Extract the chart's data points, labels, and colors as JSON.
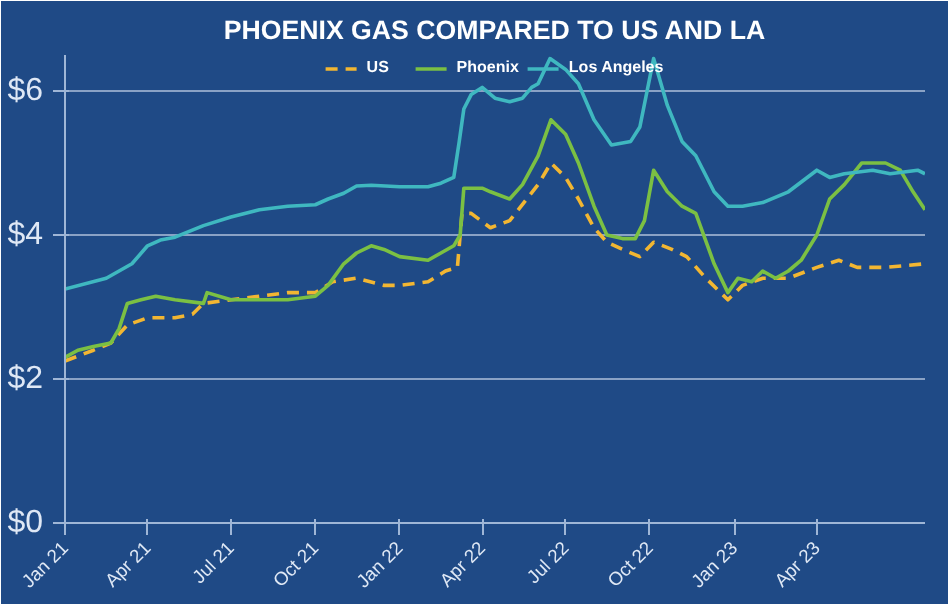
{
  "chart_data": {
    "type": "line",
    "title": "PHOENIX GAS COMPARED TO US AND LA",
    "legend": "top",
    "grid": "y",
    "xlim": [
      "2021-01-01",
      "2023-07-28"
    ],
    "ylim": [
      0,
      6.5
    ],
    "yticks": [
      {
        "value": 0,
        "label": "$0"
      },
      {
        "value": 2,
        "label": "$2"
      },
      {
        "value": 4,
        "label": "$4"
      },
      {
        "value": 6,
        "label": "$6"
      }
    ],
    "xticks": [
      {
        "value": "2021-01-01",
        "label": "Jan 21"
      },
      {
        "value": "2021-04-01",
        "label": "Apr 21"
      },
      {
        "value": "2021-07-01",
        "label": "Jul 21"
      },
      {
        "value": "2021-10-01",
        "label": "Oct 21"
      },
      {
        "value": "2022-01-01",
        "label": "Jan 22"
      },
      {
        "value": "2022-04-01",
        "label": "Apr 22"
      },
      {
        "value": "2022-07-01",
        "label": "Jul 22"
      },
      {
        "value": "2022-10-01",
        "label": "Oct 22"
      },
      {
        "value": "2023-01-01",
        "label": "Jan 23"
      },
      {
        "value": "2023-04-01",
        "label": "Apr 23"
      }
    ],
    "series": [
      {
        "name": "US",
        "color": "#f2b632",
        "line_style": "dashed",
        "x": [
          "2021-01-01",
          "2021-02-01",
          "2021-02-20",
          "2021-03-10",
          "2021-04-01",
          "2021-05-01",
          "2021-05-20",
          "2021-06-01",
          "2021-07-01",
          "2021-08-01",
          "2021-09-01",
          "2021-10-01",
          "2021-10-20",
          "2021-11-15",
          "2021-12-15",
          "2022-01-01",
          "2022-02-01",
          "2022-02-20",
          "2022-03-05",
          "2022-03-10",
          "2022-03-20",
          "2022-04-10",
          "2022-05-01",
          "2022-06-01",
          "2022-06-15",
          "2022-07-01",
          "2022-07-15",
          "2022-08-01",
          "2022-08-15",
          "2022-09-01",
          "2022-09-20",
          "2022-10-05",
          "2022-10-25",
          "2022-11-10",
          "2022-12-01",
          "2022-12-25",
          "2023-01-10",
          "2023-02-01",
          "2023-03-01",
          "2023-04-01",
          "2023-04-25",
          "2023-05-15",
          "2023-06-15",
          "2023-07-28"
        ],
        "values": [
          2.25,
          2.4,
          2.5,
          2.75,
          2.85,
          2.85,
          2.9,
          3.05,
          3.1,
          3.15,
          3.2,
          3.2,
          3.35,
          3.4,
          3.3,
          3.3,
          3.35,
          3.5,
          3.55,
          4.3,
          4.3,
          4.1,
          4.2,
          4.7,
          5.0,
          4.8,
          4.5,
          4.1,
          3.9,
          3.8,
          3.7,
          3.9,
          3.8,
          3.7,
          3.4,
          3.1,
          3.3,
          3.4,
          3.4,
          3.55,
          3.65,
          3.55,
          3.55,
          3.6
        ]
      },
      {
        "name": "Phoenix",
        "color": "#7bc043",
        "line_style": "solid",
        "x": [
          "2021-01-01",
          "2021-01-15",
          "2021-02-01",
          "2021-02-20",
          "2021-03-01",
          "2021-03-10",
          "2021-03-25",
          "2021-04-10",
          "2021-05-01",
          "2021-06-01",
          "2021-06-05",
          "2021-07-01",
          "2021-08-01",
          "2021-09-01",
          "2021-10-01",
          "2021-10-15",
          "2021-11-01",
          "2021-11-15",
          "2021-12-01",
          "2021-12-15",
          "2022-01-01",
          "2022-02-01",
          "2022-02-15",
          "2022-03-01",
          "2022-03-08",
          "2022-03-12",
          "2022-04-01",
          "2022-04-10",
          "2022-05-01",
          "2022-05-15",
          "2022-06-01",
          "2022-06-15",
          "2022-07-01",
          "2022-07-15",
          "2022-08-01",
          "2022-08-15",
          "2022-09-01",
          "2022-09-15",
          "2022-09-25",
          "2022-10-05",
          "2022-10-20",
          "2022-11-05",
          "2022-11-20",
          "2022-12-10",
          "2022-12-25",
          "2023-01-05",
          "2023-01-20",
          "2023-02-01",
          "2023-02-15",
          "2023-03-01",
          "2023-03-15",
          "2023-04-01",
          "2023-04-15",
          "2023-05-01",
          "2023-05-20",
          "2023-06-15",
          "2023-07-01",
          "2023-07-15",
          "2023-07-28"
        ],
        "values": [
          2.3,
          2.4,
          2.45,
          2.5,
          2.7,
          3.05,
          3.1,
          3.15,
          3.1,
          3.05,
          3.2,
          3.1,
          3.1,
          3.1,
          3.15,
          3.3,
          3.6,
          3.75,
          3.85,
          3.8,
          3.7,
          3.65,
          3.75,
          3.85,
          4.0,
          4.65,
          4.65,
          4.6,
          4.5,
          4.7,
          5.1,
          5.6,
          5.4,
          5.0,
          4.4,
          4.0,
          3.95,
          3.95,
          4.2,
          4.9,
          4.6,
          4.4,
          4.3,
          3.6,
          3.2,
          3.4,
          3.35,
          3.5,
          3.4,
          3.5,
          3.65,
          4.0,
          4.5,
          4.7,
          5.0,
          5.0,
          4.9,
          4.6,
          4.35
        ]
      },
      {
        "name": "Los Angeles",
        "color": "#3fb8c0",
        "line_style": "solid",
        "x": [
          "2021-01-01",
          "2021-02-15",
          "2021-03-01",
          "2021-03-15",
          "2021-04-01",
          "2021-04-15",
          "2021-05-01",
          "2021-06-01",
          "2021-07-01",
          "2021-08-01",
          "2021-09-01",
          "2021-10-01",
          "2021-10-15",
          "2021-11-01",
          "2021-11-15",
          "2021-12-01",
          "2022-01-01",
          "2022-02-01",
          "2022-02-15",
          "2022-03-01",
          "2022-03-07",
          "2022-03-12",
          "2022-03-20",
          "2022-04-01",
          "2022-04-15",
          "2022-05-01",
          "2022-05-15",
          "2022-05-25",
          "2022-06-01",
          "2022-06-14",
          "2022-07-01",
          "2022-07-15",
          "2022-08-01",
          "2022-08-20",
          "2022-09-10",
          "2022-09-20",
          "2022-10-05",
          "2022-10-20",
          "2022-11-05",
          "2022-11-20",
          "2022-12-10",
          "2022-12-25",
          "2023-01-10",
          "2023-02-01",
          "2023-03-01",
          "2023-04-01",
          "2023-04-15",
          "2023-05-01",
          "2023-06-01",
          "2023-06-20",
          "2023-07-20",
          "2023-07-28"
        ],
        "values": [
          3.25,
          3.4,
          3.5,
          3.6,
          3.85,
          3.93,
          3.97,
          4.13,
          4.25,
          4.35,
          4.4,
          4.42,
          4.5,
          4.58,
          4.68,
          4.69,
          4.67,
          4.67,
          4.72,
          4.8,
          5.3,
          5.75,
          5.95,
          6.05,
          5.9,
          5.85,
          5.9,
          6.05,
          6.1,
          6.45,
          6.3,
          6.1,
          5.6,
          5.25,
          5.3,
          5.5,
          6.45,
          5.8,
          5.3,
          5.1,
          4.6,
          4.4,
          4.4,
          4.45,
          4.6,
          4.9,
          4.8,
          4.85,
          4.9,
          4.85,
          4.9,
          4.85
        ]
      }
    ]
  }
}
